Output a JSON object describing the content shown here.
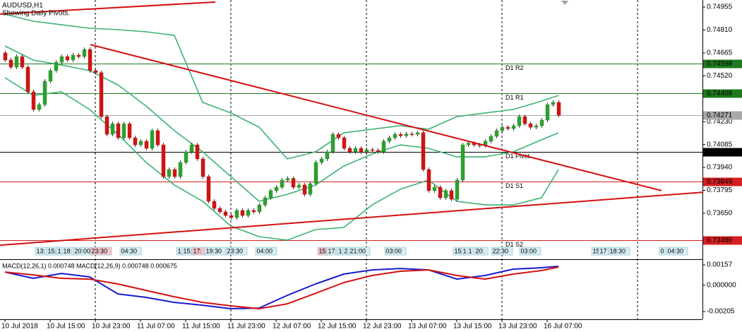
{
  "chart_data": {
    "type": "candlestick",
    "title": "AUDUSD,H1",
    "subtitle": "Showing Daily Pivots.",
    "up_color": "#2e9e2e",
    "down_color": "#cc1414",
    "xlim": [
      -0.875,
      123.5
    ],
    "ylim": [
      0.73368,
      0.75
    ],
    "yticks": [
      0.74955,
      {
        "value": 0.7481,
        "label": "0.74810"
      },
      0.74665,
      {
        "value": 0.7452,
        "label": "0.74520"
      },
      {
        "value": 0.7423,
        "label": "0.74230"
      },
      0.74085,
      {
        "value": 0.7394,
        "label": "0.73940"
      },
      0.73795,
      {
        "value": 0.7365,
        "label": "0.73650"
      }
    ],
    "xticks": [
      {
        "value": 0,
        "label": "10 Jul 2018"
      },
      {
        "value": 8,
        "label": "10 Jul 15:00"
      },
      {
        "value": 16,
        "label": "10 Jul 23:00"
      },
      {
        "value": 24,
        "label": "11 Jul 07:00"
      },
      {
        "value": 32,
        "label": "11 Jul 15:00"
      },
      {
        "value": 40,
        "label": "11 Jul 23:00"
      },
      {
        "value": 48,
        "label": "12 Jul 07:00"
      },
      {
        "value": 56,
        "label": "12 Jul 15:00"
      },
      {
        "value": 64,
        "label": "12 Jul 23:00"
      },
      {
        "value": 72,
        "label": "13 Jul 07:00"
      },
      {
        "value": 80,
        "label": "13 Jul 15:00"
      },
      {
        "value": 88,
        "label": "13 Jul 23:00"
      },
      {
        "value": 96,
        "label": "16 Jul 07:00"
      }
    ],
    "open": [
      0.74665,
      0.7462,
      0.74575,
      0.74642,
      0.74575,
      0.74419,
      0.74307,
      0.74338,
      0.74486,
      0.74553,
      0.74606,
      0.74642,
      0.7462,
      0.74651,
      0.74642,
      0.74687,
      0.74553,
      0.7454,
      0.74262,
      0.7415,
      0.74217,
      0.74128,
      0.74217,
      0.74128,
      0.74083,
      0.74106,
      0.74061,
      0.74173,
      0.74083,
      0.73882,
      0.73927,
      0.73882,
      0.73972,
      0.74039,
      0.74083,
      0.73994,
      0.73882,
      0.73726,
      0.73681,
      0.73659,
      0.73636,
      0.73623,
      0.73668,
      0.73636,
      0.73668,
      0.73659,
      0.73703,
      0.73748,
      0.73793,
      0.73815,
      0.7386,
      0.73871,
      0.73815,
      0.73829,
      0.7377,
      0.73838,
      0.73972,
      0.73994,
      0.74039,
      0.7415,
      0.74128,
      0.74061,
      0.74039,
      0.74061,
      0.74039,
      0.74052,
      0.74048,
      0.74039,
      0.74106,
      0.74128,
      0.7415,
      0.74141,
      0.74152,
      0.7415,
      0.7416,
      0.73927,
      0.73793,
      0.73815,
      0.73748,
      0.73793,
      0.73739,
      0.7386,
      0.74083,
      0.74094,
      0.74083,
      0.74079,
      0.74106,
      0.74137,
      0.74173,
      0.74195,
      0.74186,
      0.74204,
      0.74262,
      0.74217,
      0.74195,
      0.74204,
      0.7424,
      0.74338,
      0.74352
    ],
    "high": [
      0.74678,
      0.74633,
      0.74655,
      0.74655,
      0.74588,
      0.74432,
      0.74351,
      0.74499,
      0.74566,
      0.74619,
      0.74655,
      0.74655,
      0.74664,
      0.74664,
      0.747,
      0.747,
      0.74566,
      0.74553,
      0.74275,
      0.7423,
      0.7423,
      0.7423,
      0.7423,
      0.74141,
      0.74119,
      0.74119,
      0.74186,
      0.74186,
      0.74096,
      0.7394,
      0.7394,
      0.73985,
      0.74052,
      0.74096,
      0.74096,
      0.74007,
      0.73895,
      0.73739,
      0.73694,
      0.73672,
      0.73649,
      0.73681,
      0.73681,
      0.73681,
      0.73681,
      0.73716,
      0.73761,
      0.73806,
      0.73828,
      0.73873,
      0.73884,
      0.73884,
      0.73842,
      0.73842,
      0.73851,
      0.73985,
      0.74007,
      0.74052,
      0.74163,
      0.74163,
      0.74141,
      0.74074,
      0.74074,
      0.74074,
      0.74065,
      0.74065,
      0.74061,
      0.74119,
      0.74141,
      0.74163,
      0.74163,
      0.74165,
      0.74165,
      0.74173,
      0.74173,
      0.7394,
      0.73828,
      0.73828,
      0.73806,
      0.73806,
      0.73873,
      0.74096,
      0.74107,
      0.74107,
      0.74096,
      0.74119,
      0.7415,
      0.74186,
      0.74208,
      0.74208,
      0.74217,
      0.74275,
      0.74275,
      0.7423,
      0.74217,
      0.74253,
      0.74351,
      0.74365,
      0.74365
    ],
    "low": [
      0.74607,
      0.74562,
      0.74562,
      0.74562,
      0.74406,
      0.74294,
      0.74294,
      0.74325,
      0.74473,
      0.7454,
      0.74593,
      0.74607,
      0.74607,
      0.74629,
      0.74629,
      0.7454,
      0.74527,
      0.74249,
      0.74137,
      0.74137,
      0.74115,
      0.74115,
      0.74115,
      0.7407,
      0.7407,
      0.74048,
      0.74048,
      0.7407,
      0.73869,
      0.73869,
      0.73869,
      0.73869,
      0.73959,
      0.74026,
      0.73981,
      0.73869,
      0.73713,
      0.73668,
      0.73646,
      0.73623,
      0.7361,
      0.7361,
      0.73623,
      0.73623,
      0.73646,
      0.73646,
      0.7369,
      0.73735,
      0.7378,
      0.73802,
      0.73847,
      0.73802,
      0.73802,
      0.73757,
      0.73757,
      0.73825,
      0.73959,
      0.73981,
      0.74026,
      0.74115,
      0.74048,
      0.74026,
      0.74026,
      0.74026,
      0.74026,
      0.74035,
      0.74026,
      0.74026,
      0.74093,
      0.74115,
      0.74128,
      0.74128,
      0.74137,
      0.74137,
      0.73914,
      0.7378,
      0.7378,
      0.73735,
      0.73735,
      0.73726,
      0.73726,
      0.73847,
      0.7407,
      0.7407,
      0.74066,
      0.74066,
      0.74093,
      0.74124,
      0.7416,
      0.74173,
      0.74173,
      0.74191,
      0.74204,
      0.74182,
      0.74182,
      0.74191,
      0.74227,
      0.74325,
      0.74258
    ],
    "close": [
      0.7462,
      0.74575,
      0.74642,
      0.74575,
      0.74419,
      0.74307,
      0.74338,
      0.74486,
      0.74553,
      0.74606,
      0.74642,
      0.7462,
      0.74651,
      0.74642,
      0.74687,
      0.74553,
      0.7454,
      0.74262,
      0.7415,
      0.74217,
      0.74128,
      0.74217,
      0.74128,
      0.74083,
      0.74106,
      0.74061,
      0.74173,
      0.74083,
      0.73882,
      0.73927,
      0.73882,
      0.73972,
      0.74039,
      0.74083,
      0.73994,
      0.73882,
      0.73726,
      0.73681,
      0.73659,
      0.73636,
      0.73623,
      0.73668,
      0.73636,
      0.73668,
      0.73659,
      0.73703,
      0.73748,
      0.73793,
      0.73815,
      0.7386,
      0.73871,
      0.73815,
      0.73829,
      0.7377,
      0.73838,
      0.73972,
      0.73994,
      0.74039,
      0.7415,
      0.74128,
      0.74061,
      0.74039,
      0.74061,
      0.74039,
      0.74052,
      0.74048,
      0.74039,
      0.74106,
      0.74128,
      0.7415,
      0.74141,
      0.74152,
      0.7415,
      0.7416,
      0.73927,
      0.73793,
      0.73815,
      0.73748,
      0.73793,
      0.73739,
      0.7386,
      0.74083,
      0.74094,
      0.74083,
      0.74079,
      0.74106,
      0.74137,
      0.74173,
      0.74195,
      0.74186,
      0.74204,
      0.74262,
      0.74217,
      0.74195,
      0.74204,
      0.7424,
      0.74338,
      0.74352,
      0.74271
    ],
    "bands": {
      "color": "#3cb371",
      "x": [
        0,
        5,
        10,
        15,
        20,
        25,
        30,
        35,
        40,
        45,
        50,
        55,
        60,
        65,
        70,
        75,
        80,
        85,
        90,
        95,
        98
      ],
      "upper": [
        0.7491,
        0.74866,
        0.74843,
        0.74821,
        0.74812,
        0.74799,
        0.74776,
        0.74352,
        0.74285,
        0.74195,
        0.73994,
        0.74039,
        0.74159,
        0.74182,
        0.74204,
        0.74182,
        0.74262,
        0.74285,
        0.74307,
        0.7436,
        0.74396
      ],
      "middle": [
        0.74709,
        0.7462,
        0.74588,
        0.74553,
        0.74463,
        0.74329,
        0.74173,
        0.74039,
        0.73882,
        0.73726,
        0.7377,
        0.73829,
        0.73949,
        0.74025,
        0.74083,
        0.74061,
        0.74007,
        0.74007,
        0.74039,
        0.74115,
        0.74159
      ],
      "lower": [
        0.74508,
        0.74396,
        0.74419,
        0.74307,
        0.7415,
        0.73972,
        0.73829,
        0.73726,
        0.73569,
        0.73502,
        0.7348,
        0.73547,
        0.7356,
        0.73703,
        0.73802,
        0.7386,
        0.73726,
        0.73703,
        0.73703,
        0.73748,
        0.73927
      ]
    },
    "pivots": {
      "names": [
        "D1 R2",
        "D1 R1",
        "D1 Pivot",
        "D1 S1",
        "D1 S2"
      ],
      "values": [
        0.74598,
        0.74408,
        0.74039,
        0.73849,
        0.7348
      ],
      "value_labels": [
        "0.74598",
        "0.74408",
        "0.74039",
        "0.73849",
        "0.73480"
      ],
      "colors": [
        "#1f7a1f",
        "#1f7a1f",
        "#000000",
        "#d42020",
        "#d42020"
      ]
    },
    "current_price_color": "#a8a8a8",
    "trendlines": {
      "color": "#d41010",
      "lines": [
        {
          "x": [
            -0.875,
            37.25
          ],
          "values": [
            0.74911,
            0.74987
          ]
        },
        {
          "x": [
            15.125,
            116.25
          ],
          "values": [
            0.74718,
            0.73793
          ]
        },
        {
          "x": [
            -0.875,
            123.5
          ],
          "values": [
            0.73448,
            0.73783
          ]
        }
      ]
    },
    "macd": {
      "title": "MACD(12,26,1) 0.000748 MACD(12,26,9) 0.000748 0.000675",
      "y2lim": [
        -0.00265,
        0.0019
      ],
      "y2ticks": [
        0.00157,
        {
          "value": 0,
          "label": "0.000000"
        },
        -0.00205
      ],
      "x": [
        0,
        5,
        10,
        15,
        20,
        25,
        30,
        35,
        40,
        45,
        50,
        55,
        60,
        65,
        70,
        75,
        80,
        85,
        90,
        95,
        98
      ],
      "series": [
        {
          "color": "#1a1ad0",
          "values": [
            0.00102,
            0.00053,
            0.00091,
            0.00064,
            -0.00068,
            -0.00095,
            -0.00134,
            -0.00156,
            -0.00183,
            -0.00178,
            -0.00079,
            9e-05,
            0.00086,
            0.00118,
            0.00129,
            0.00118,
            0.00047,
            0.00075,
            0.00124,
            0.00135,
            0.00146
          ]
        },
        {
          "color": "#d41010",
          "values": [
            0.00102,
            0.0008,
            0.00053,
            0.00047,
            9e-05,
            -0.00041,
            -0.0009,
            -0.00134,
            -0.00161,
            -0.00183,
            -0.00145,
            -0.00063,
            0.0002,
            0.00075,
            0.00108,
            0.00118,
            0.00075,
            0.00047,
            0.00086,
            0.00113,
            0.0014
          ]
        }
      ]
    },
    "session_labels": [
      "13:",
      "15:",
      "1",
      "18:",
      "20:00",
      "23:30",
      "04:30",
      "1",
      "15:",
      "17:",
      "19:30",
      "23:30",
      "04:00",
      "15:",
      "17:",
      "1",
      "2",
      "21:00",
      "03:00",
      "15:",
      "1",
      "1",
      "20:",
      "22:30",
      "03:00",
      "15",
      "17",
      "18:30",
      "0",
      "04:30"
    ]
  }
}
